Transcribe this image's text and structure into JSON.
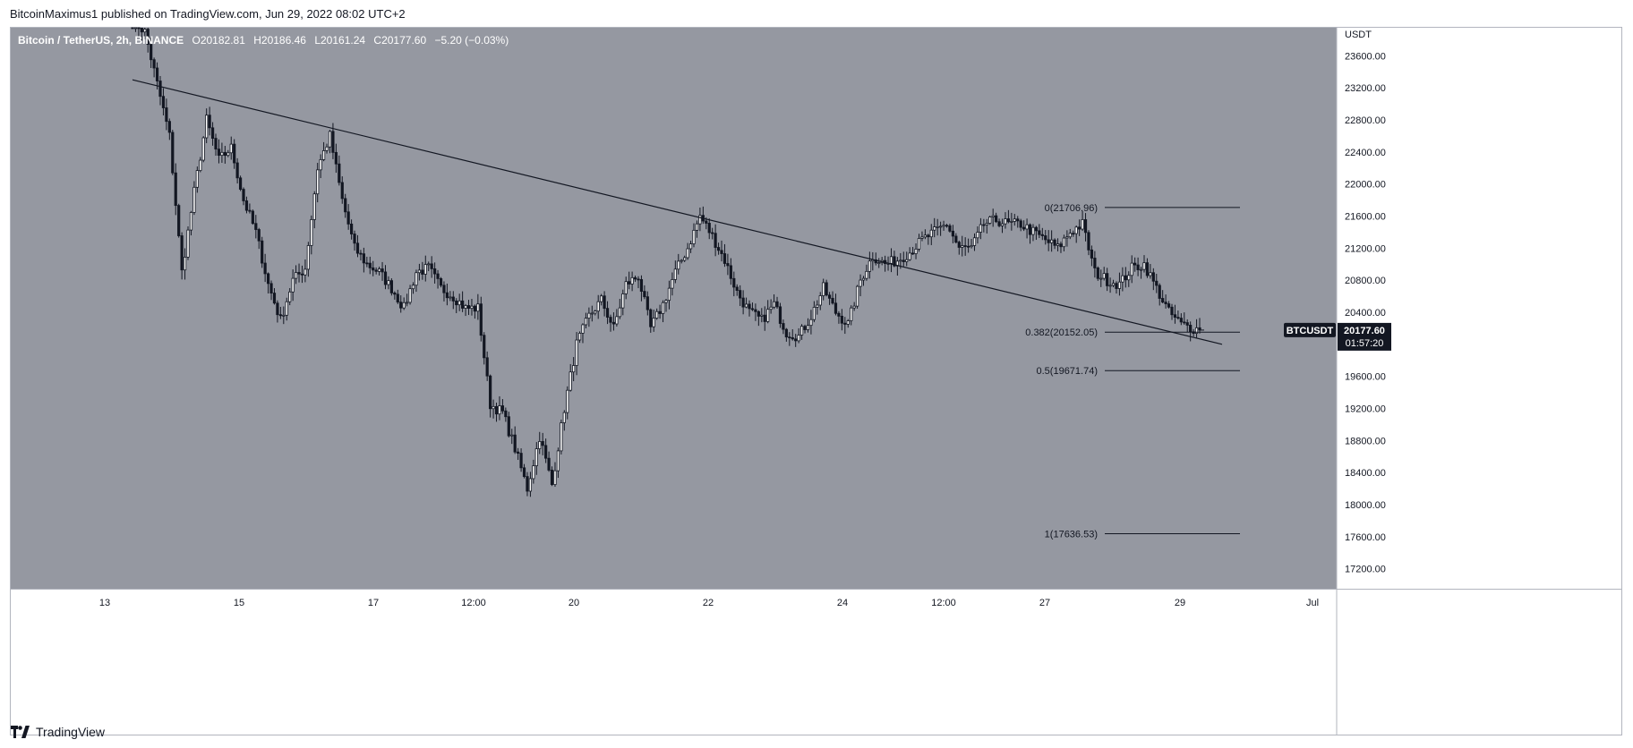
{
  "header": {
    "published_by": "BitcoinMaximus1 published on TradingView.com, Jun 29, 2022 08:02 UTC+2"
  },
  "legend": {
    "symbol": "Bitcoin / TetherUS, 2h, BINANCE",
    "open_label": "O",
    "open": "20182.81",
    "high_label": "H",
    "high": "20186.46",
    "low_label": "L",
    "low": "20161.24",
    "close_label": "C",
    "close": "20177.60",
    "change": "−5.20 (−0.03%)"
  },
  "price_scale": {
    "currency": "USDT",
    "ticks": [
      "23600.00",
      "23200.00",
      "22800.00",
      "22400.00",
      "22000.00",
      "21600.00",
      "21200.00",
      "20800.00",
      "20400.00",
      "19600.00",
      "19200.00",
      "18800.00",
      "18400.00",
      "18000.00",
      "17600.00",
      "17200.00"
    ],
    "last_price_symbol": "BTCUSDT",
    "last_price": "20177.60",
    "countdown": "01:57:20"
  },
  "time_axis": {
    "ticks": [
      "13",
      "15",
      "17",
      "12:00",
      "20",
      "22",
      "24",
      "12:00",
      "27",
      "29",
      "Jul"
    ]
  },
  "fib_levels": [
    {
      "label": "0(21706.96)",
      "ratio": 0,
      "price": 21706.96
    },
    {
      "label": "0.382(20152.05)",
      "ratio": 0.382,
      "price": 20152.05
    },
    {
      "label": "0.5(19671.74)",
      "ratio": 0.5,
      "price": 19671.74
    },
    {
      "label": "1(17636.53)",
      "ratio": 1,
      "price": 17636.53
    }
  ],
  "footer": {
    "brand": "TradingView"
  },
  "colors": {
    "plot_bg": "#9598a1",
    "up_candle": "#ffffff",
    "down_candle": "#131722",
    "trendline": "#131722",
    "label_bg": "#131722",
    "label_text": "#ffffff"
  },
  "chart_data": {
    "type": "candlestick",
    "title": "Bitcoin / TetherUS, 2h, BINANCE",
    "ylim": [
      16950,
      23950
    ],
    "x_ticks": [
      "13",
      "15",
      "17",
      "12:00",
      "20",
      "22",
      "24",
      "12:00",
      "27",
      "29",
      "Jul"
    ],
    "trendline": {
      "start": 23300,
      "end": 20000
    },
    "anchors": [
      [
        0,
        24050
      ],
      [
        4,
        23900
      ],
      [
        8,
        23250
      ],
      [
        12,
        22600
      ],
      [
        16,
        20900
      ],
      [
        20,
        21900
      ],
      [
        24,
        22800
      ],
      [
        28,
        22300
      ],
      [
        32,
        22450
      ],
      [
        36,
        21800
      ],
      [
        40,
        21400
      ],
      [
        44,
        20750
      ],
      [
        48,
        20300
      ],
      [
        52,
        20800
      ],
      [
        56,
        20950
      ],
      [
        60,
        22200
      ],
      [
        64,
        22600
      ],
      [
        68,
        21800
      ],
      [
        72,
        21200
      ],
      [
        76,
        21000
      ],
      [
        80,
        20900
      ],
      [
        84,
        20700
      ],
      [
        88,
        20450
      ],
      [
        92,
        20900
      ],
      [
        96,
        20950
      ],
      [
        100,
        20700
      ],
      [
        104,
        20600
      ],
      [
        108,
        20450
      ],
      [
        112,
        20450
      ],
      [
        116,
        19250
      ],
      [
        120,
        19150
      ],
      [
        124,
        18700
      ],
      [
        128,
        18200
      ],
      [
        132,
        18850
      ],
      [
        136,
        18250
      ],
      [
        140,
        19200
      ],
      [
        144,
        20000
      ],
      [
        148,
        20350
      ],
      [
        152,
        20550
      ],
      [
        156,
        20200
      ],
      [
        160,
        20750
      ],
      [
        164,
        20850
      ],
      [
        168,
        20200
      ],
      [
        172,
        20500
      ],
      [
        176,
        20900
      ],
      [
        180,
        21200
      ],
      [
        184,
        21600
      ],
      [
        188,
        21350
      ],
      [
        192,
        21050
      ],
      [
        196,
        20650
      ],
      [
        200,
        20400
      ],
      [
        204,
        20300
      ],
      [
        208,
        20500
      ],
      [
        212,
        20150
      ],
      [
        216,
        20100
      ],
      [
        220,
        20350
      ],
      [
        224,
        20700
      ],
      [
        228,
        20400
      ],
      [
        232,
        20250
      ],
      [
        236,
        20800
      ],
      [
        240,
        21100
      ],
      [
        244,
        21000
      ],
      [
        248,
        21050
      ],
      [
        252,
        21150
      ],
      [
        256,
        21300
      ],
      [
        260,
        21400
      ],
      [
        264,
        21500
      ],
      [
        268,
        21200
      ],
      [
        272,
        21200
      ],
      [
        276,
        21500
      ],
      [
        280,
        21550
      ],
      [
        284,
        21500
      ],
      [
        288,
        21500
      ],
      [
        292,
        21400
      ],
      [
        296,
        21300
      ],
      [
        300,
        21200
      ],
      [
        304,
        21400
      ],
      [
        308,
        21500
      ],
      [
        312,
        20900
      ],
      [
        316,
        20800
      ],
      [
        320,
        20750
      ],
      [
        324,
        20950
      ],
      [
        328,
        21000
      ],
      [
        332,
        20700
      ],
      [
        336,
        20400
      ],
      [
        340,
        20250
      ],
      [
        344,
        20200
      ],
      [
        346,
        20180
      ]
    ],
    "n_candles": 347
  }
}
